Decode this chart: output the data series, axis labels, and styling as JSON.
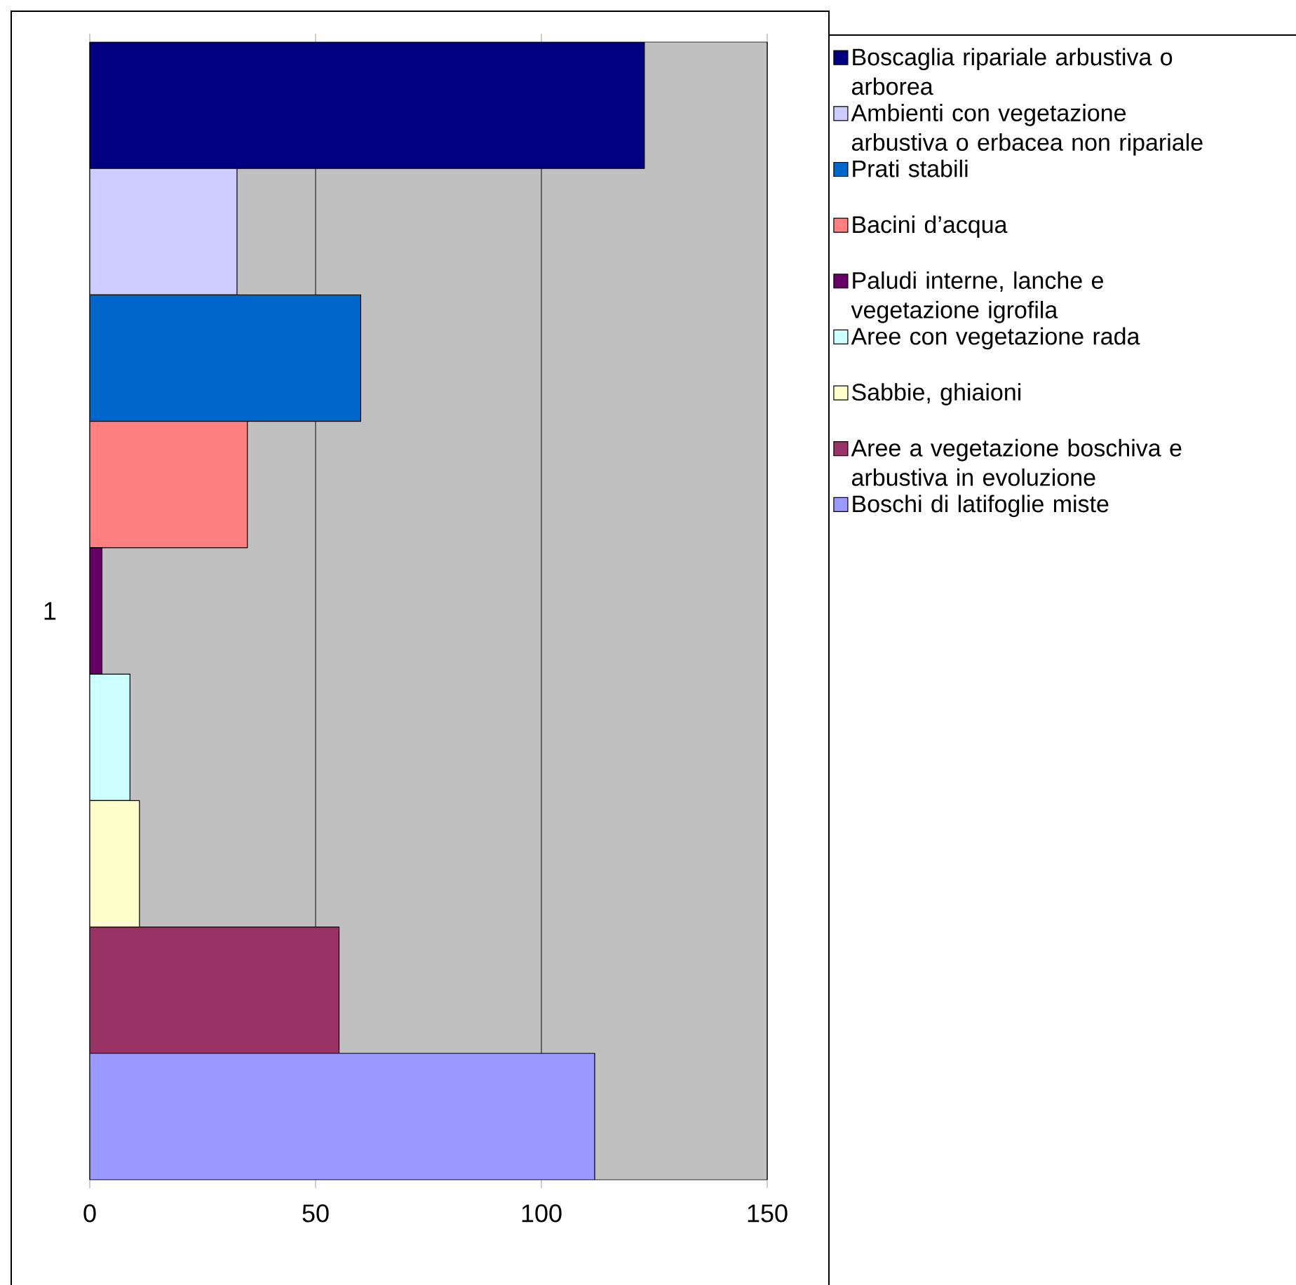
{
  "chart_data": {
    "type": "bar",
    "orientation": "horizontal",
    "categories": [
      "1"
    ],
    "series": [
      {
        "name": "Boscaglia ripariale arbustiva o arborea",
        "color": "#000080",
        "values": [
          122.8
        ]
      },
      {
        "name": "Ambienti con vegetazione arbustiva o erbacea non ripariale",
        "color": "#ccccff",
        "values": [
          32.6
        ]
      },
      {
        "name": "Prati stabili",
        "color": "#0066cc",
        "values": [
          60
        ]
      },
      {
        "name": "Bacini d’acqua",
        "color": "#ff8080",
        "values": [
          34.9
        ]
      },
      {
        "name": "Paludi interne, lanche e vegetazione igrofila",
        "color": "#660066",
        "values": [
          2.7
        ]
      },
      {
        "name": "Aree con vegetazione rada",
        "color": "#ccffff",
        "values": [
          8.9
        ]
      },
      {
        "name": "Sabbie, ghiaioni",
        "color": "#ffffcc",
        "values": [
          11
        ]
      },
      {
        "name": "Aree a vegetazione boschiva e arbustiva in evoluzione",
        "color": "#993366",
        "values": [
          55.2
        ]
      },
      {
        "name": "Boschi di latifoglie miste",
        "color": "#9999ff",
        "values": [
          111.8
        ]
      }
    ],
    "xlim": [
      0,
      150
    ],
    "xticks": [
      0,
      50,
      100,
      150
    ],
    "grid": "x",
    "legend": "right"
  }
}
